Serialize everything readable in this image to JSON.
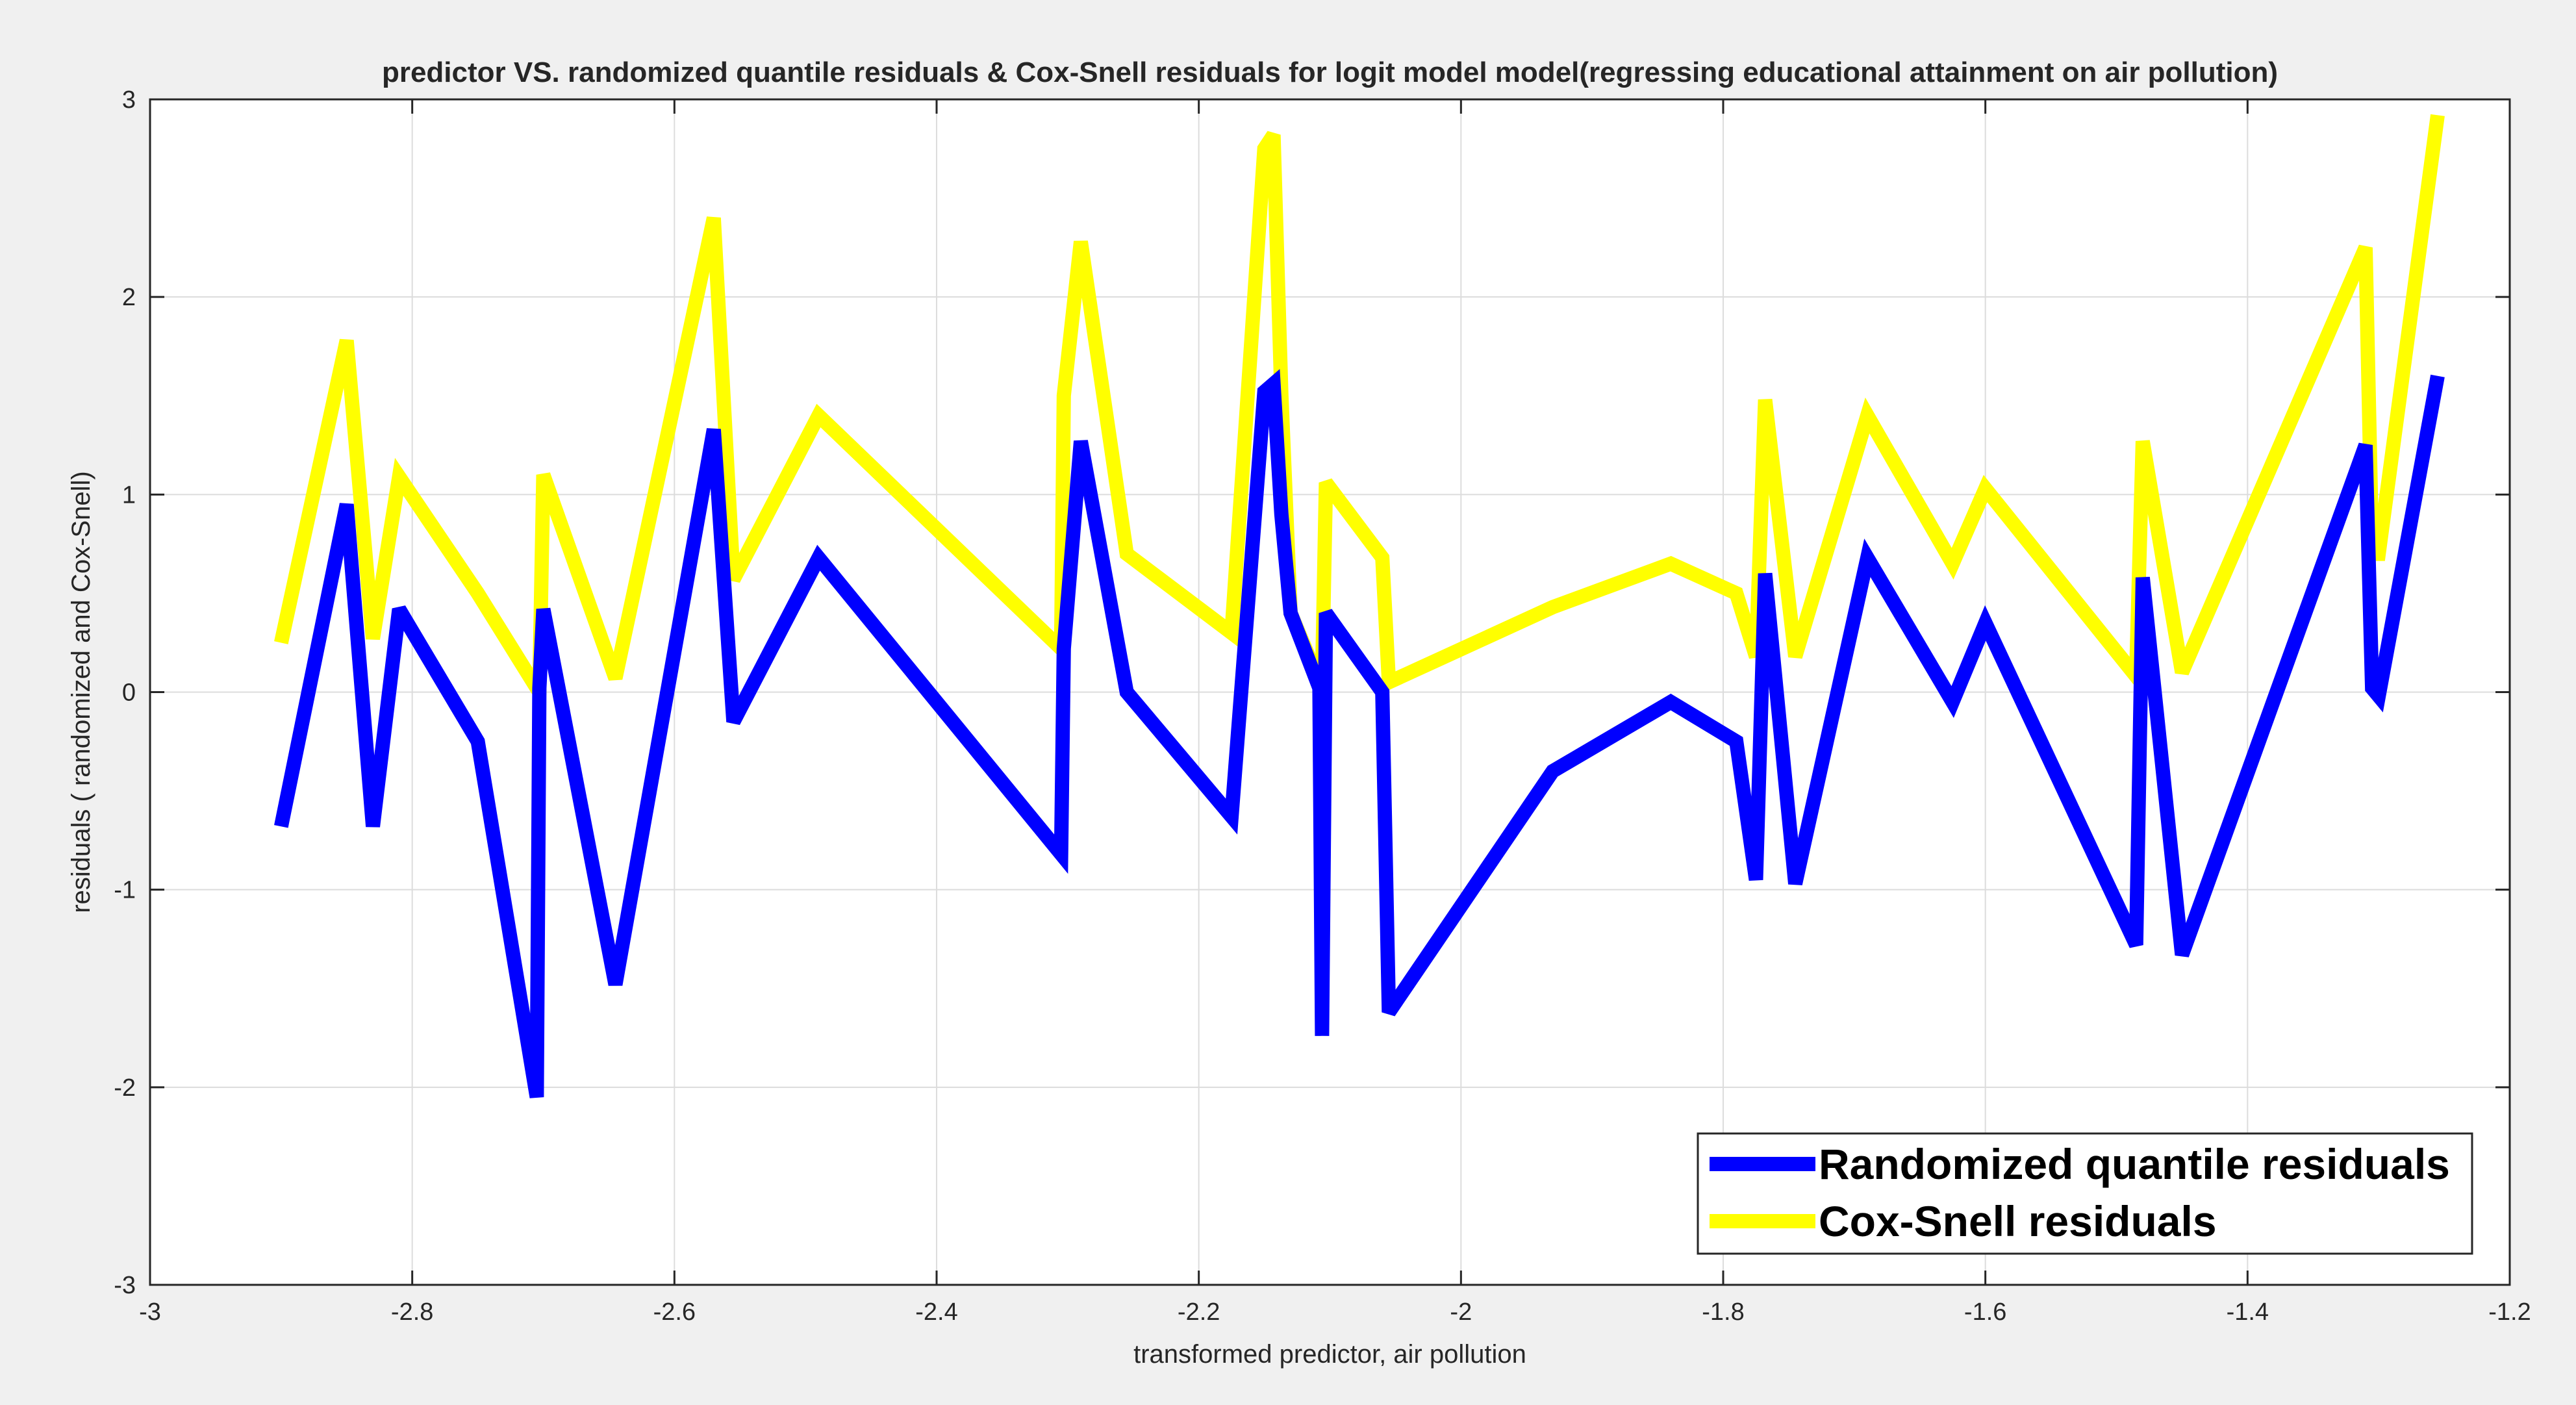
{
  "chart_data": {
    "type": "line",
    "title": "predictor VS. randomized quantile residuals & Cox-Snell residuals for logit model model(regressing educational attainment on air pollution)",
    "xlabel": "transformed predictor, air pollution",
    "ylabel": "residuals ( randomized and Cox-Snell)",
    "xlim": [
      -3,
      -1.2
    ],
    "ylim": [
      -3,
      3
    ],
    "xticks": [
      "-3",
      "-2.8",
      "-2.6",
      "-2.4",
      "-2.2",
      "-2",
      "-1.8",
      "-1.6",
      "-1.4",
      "-1.2"
    ],
    "xtick_values": [
      -3,
      -2.8,
      -2.6,
      -2.4,
      -2.2,
      -2,
      -1.8,
      -1.6,
      -1.4,
      -1.2
    ],
    "yticks": [
      "-3",
      "-2",
      "-1",
      "0",
      "1",
      "2",
      "3"
    ],
    "ytick_values": [
      -3,
      -2,
      -1,
      0,
      1,
      2,
      3
    ],
    "grid": true,
    "legend_position": "bottom-right",
    "x": [
      -2.9,
      -2.85,
      -2.83,
      -2.81,
      -2.75,
      -2.705,
      -2.703,
      -2.7,
      -2.645,
      -2.57,
      -2.555,
      -2.49,
      -2.305,
      -2.303,
      -2.29,
      -2.255,
      -2.175,
      -2.15,
      -2.143,
      -2.137,
      -2.13,
      -2.108,
      -2.106,
      -2.103,
      -2.06,
      -2.055,
      -1.93,
      -1.84,
      -1.79,
      -1.775,
      -1.768,
      -1.745,
      -1.69,
      -1.625,
      -1.6,
      -1.485,
      -1.48,
      -1.45,
      -1.31,
      -1.305,
      -1.3,
      -1.255
    ],
    "series": [
      {
        "name": "Randomized quantile residuals",
        "color": "#0000ff",
        "values": [
          -0.68,
          0.95,
          -0.68,
          0.42,
          -0.25,
          -2.05,
          0.02,
          0.42,
          -1.48,
          1.33,
          -0.15,
          0.68,
          -0.82,
          0.22,
          1.27,
          0.0,
          -0.63,
          1.52,
          1.56,
          0.9,
          0.4,
          0.02,
          -1.74,
          0.4,
          0.0,
          -1.62,
          -0.4,
          -0.05,
          -0.25,
          -0.95,
          0.6,
          -0.97,
          0.68,
          -0.05,
          0.35,
          -1.28,
          0.58,
          -1.33,
          1.25,
          0.02,
          -0.02,
          1.6
        ]
      },
      {
        "name": "Cox-Snell residuals",
        "color": "#ffff00",
        "values": [
          0.25,
          1.78,
          0.27,
          1.09,
          0.5,
          0.02,
          0.02,
          1.1,
          0.07,
          2.4,
          0.57,
          1.4,
          0.22,
          1.5,
          2.28,
          0.7,
          0.3,
          2.75,
          2.82,
          1.5,
          0.4,
          0.05,
          0.05,
          1.06,
          0.68,
          0.05,
          0.43,
          0.65,
          0.5,
          0.18,
          1.48,
          0.18,
          1.4,
          0.65,
          1.03,
          0.08,
          1.27,
          0.1,
          2.25,
          0.7,
          0.7,
          2.92
        ]
      }
    ]
  }
}
